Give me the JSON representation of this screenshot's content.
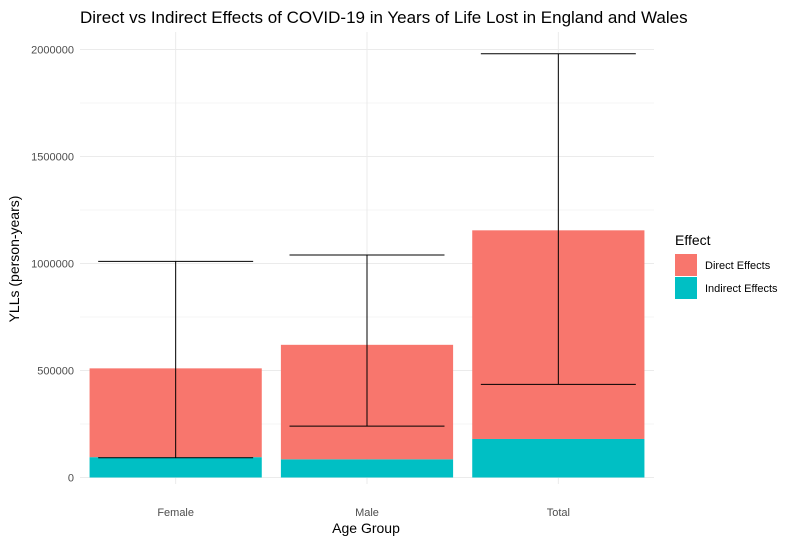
{
  "chart_data": {
    "type": "bar",
    "stacked": true,
    "title": "Direct vs Indirect Effects of COVID-19 in Years of Life Lost in England and Wales",
    "xlabel": "Age Group",
    "ylabel": "YLLs (person-years)",
    "categories": [
      "Female",
      "Male",
      "Total"
    ],
    "series": [
      {
        "name": "Direct Effects",
        "color": "#F8766D",
        "values": [
          415000,
          535000,
          975000
        ]
      },
      {
        "name": "Indirect Effects",
        "color": "#00BFC4",
        "values": [
          95000,
          85000,
          180000
        ]
      }
    ],
    "error_bars": [
      {
        "category": "Female",
        "low": 92000,
        "high": 1010000
      },
      {
        "category": "Male",
        "low": 240000,
        "high": 1040000
      },
      {
        "category": "Total",
        "low": 435000,
        "high": 1980000
      }
    ],
    "ylim": [
      0,
      2000000
    ],
    "yticks": [
      0,
      500000,
      1000000,
      1500000,
      2000000
    ],
    "ytick_labels": [
      "0",
      "500000",
      "1000000",
      "1500000",
      "2000000"
    ],
    "grid": true,
    "legend": {
      "title": "Effect",
      "position": "right"
    }
  }
}
